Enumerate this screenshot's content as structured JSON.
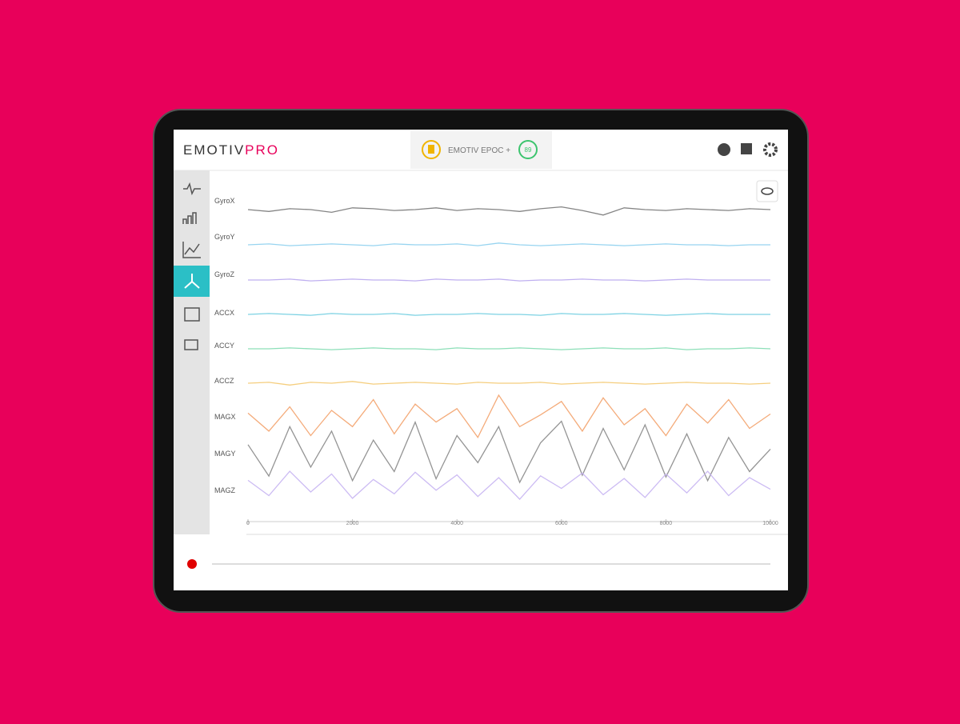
{
  "header": {
    "logo": "EMOTIV",
    "logo_accent": "PRO",
    "device": "EMOTIV EPOC +",
    "device_badge": "89"
  },
  "chart_data": {
    "type": "line",
    "x": [
      0,
      400,
      800,
      1200,
      1600,
      2000,
      2400,
      2800,
      3200,
      3600,
      4000,
      4400,
      4800,
      5200,
      5600,
      6000,
      6400,
      6800,
      7200,
      7600,
      8000,
      8400,
      8800,
      9200,
      9600,
      10000
    ],
    "xlim": [
      0,
      10000
    ],
    "xticks": [
      0,
      2000,
      4000,
      6000,
      8000,
      10000
    ],
    "ylim": [
      -4,
      4
    ],
    "series": [
      {
        "name": "GyroX",
        "color": "#777777",
        "values": [
          0,
          -0.2,
          0.1,
          0,
          -0.3,
          0.2,
          0.1,
          -0.1,
          0,
          0.2,
          -0.1,
          0.1,
          0,
          -0.2,
          0.1,
          0.3,
          -0.1,
          -0.6,
          0.2,
          0,
          -0.1,
          0.1,
          0,
          -0.1,
          0.1,
          0
        ]
      },
      {
        "name": "GyroY",
        "color": "#8ccfee",
        "values": [
          0,
          0.1,
          -0.1,
          0,
          0.1,
          0,
          -0.1,
          0.1,
          0,
          0,
          0.1,
          -0.1,
          0.2,
          0,
          -0.1,
          0,
          0.1,
          0,
          -0.1,
          0,
          0.1,
          0,
          0,
          -0.1,
          0,
          0
        ]
      },
      {
        "name": "GyroZ",
        "color": "#b8a6ee",
        "values": [
          0,
          0,
          0.1,
          -0.1,
          0,
          0.1,
          0,
          0,
          -0.1,
          0.1,
          0,
          0,
          0.1,
          -0.1,
          0,
          0,
          0.1,
          0,
          0,
          -0.1,
          0,
          0.1,
          0,
          0,
          0,
          0
        ]
      },
      {
        "name": "ACCX",
        "color": "#6fcde0",
        "values": [
          0,
          0.1,
          0,
          -0.1,
          0.1,
          0,
          0,
          0.1,
          -0.1,
          0,
          0,
          0.1,
          0,
          0,
          -0.1,
          0.1,
          0,
          0,
          0.1,
          0,
          -0.1,
          0,
          0.1,
          0,
          0,
          0
        ]
      },
      {
        "name": "ACCY",
        "color": "#7fdcb0",
        "values": [
          0,
          0,
          0.1,
          0,
          -0.1,
          0,
          0.1,
          0,
          0,
          -0.1,
          0.1,
          0,
          0,
          0.1,
          0,
          -0.1,
          0,
          0.1,
          0,
          0,
          0.1,
          -0.1,
          0,
          0,
          0.1,
          0
        ]
      },
      {
        "name": "ACCZ",
        "color": "#f4c970",
        "values": [
          0,
          0.1,
          -0.2,
          0.1,
          0,
          0.2,
          -0.1,
          0,
          0.1,
          0,
          -0.1,
          0.1,
          0,
          0,
          0.1,
          -0.1,
          0,
          0.1,
          0,
          -0.1,
          0,
          0.1,
          0,
          0,
          -0.1,
          0
        ]
      },
      {
        "name": "MAGX",
        "color": "#f3a26b",
        "values": [
          0.5,
          -1.5,
          1.2,
          -2,
          0.8,
          -1,
          2,
          -1.8,
          1.5,
          -0.5,
          1,
          -2.2,
          2.5,
          -1,
          0.3,
          1.8,
          -1.5,
          2.2,
          -0.8,
          1,
          -2,
          1.5,
          -0.6,
          2,
          -1.2,
          0.4
        ]
      },
      {
        "name": "MAGY",
        "color": "#888888",
        "values": [
          1,
          -2.5,
          3,
          -1.5,
          2.5,
          -3,
          1.5,
          -2,
          3.5,
          -2.8,
          2,
          -1,
          3,
          -3.2,
          1.2,
          3.6,
          -2.4,
          2.8,
          -1.8,
          3.2,
          -2.6,
          2.2,
          -3,
          1.8,
          -2,
          0.5
        ]
      },
      {
        "name": "MAGZ",
        "color": "#c6b4f2",
        "values": [
          0.5,
          -1.2,
          1.5,
          -0.8,
          1.2,
          -1.5,
          0.6,
          -1,
          1.4,
          -0.6,
          1.1,
          -1.3,
          0.8,
          -1.6,
          1,
          -0.4,
          1.3,
          -1.1,
          0.7,
          -1.4,
          1.2,
          -0.9,
          1.5,
          -1.2,
          0.8,
          -0.5
        ]
      }
    ]
  }
}
